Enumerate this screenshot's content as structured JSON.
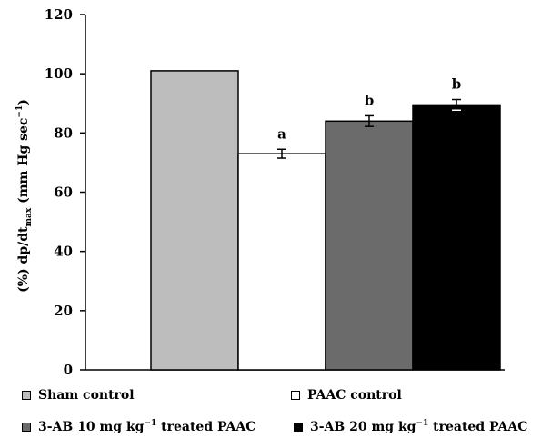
{
  "chart_data": {
    "type": "bar",
    "categories": [
      "Sham control",
      "PAAC control",
      "3-AB 10 mg kg⁻¹ treated PAAC",
      "3-AB 20 mg kg⁻¹ treated PAAC"
    ],
    "values": [
      101,
      73,
      84,
      89.5
    ],
    "errors": [
      0,
      1.5,
      1.8,
      1.8
    ],
    "annotations": [
      "",
      "a",
      "b",
      "b"
    ],
    "colors": [
      "#bdbdbd",
      "#ffffff",
      "#6b6b6b",
      "#000000"
    ],
    "ylim": [
      0,
      120
    ],
    "yticks": [
      0,
      20,
      40,
      60,
      80,
      100,
      120
    ],
    "ylabel": {
      "prefix": "(%)  dp/dt",
      "subscript": "max",
      "middle": " (mm Hg sec",
      "superscript": "−1",
      "suffix": ")"
    },
    "grid": false,
    "legend_position": "bottom"
  },
  "legend": {
    "sham": "Sham control",
    "paac": "PAAC control",
    "ab10_pre": "3-AB 10 mg kg",
    "ab10_sup": "−1",
    "ab10_post": " treated PAAC",
    "ab20_pre": "3-AB 20 mg kg",
    "ab20_sup": "−1",
    "ab20_post": " treated PAAC"
  }
}
